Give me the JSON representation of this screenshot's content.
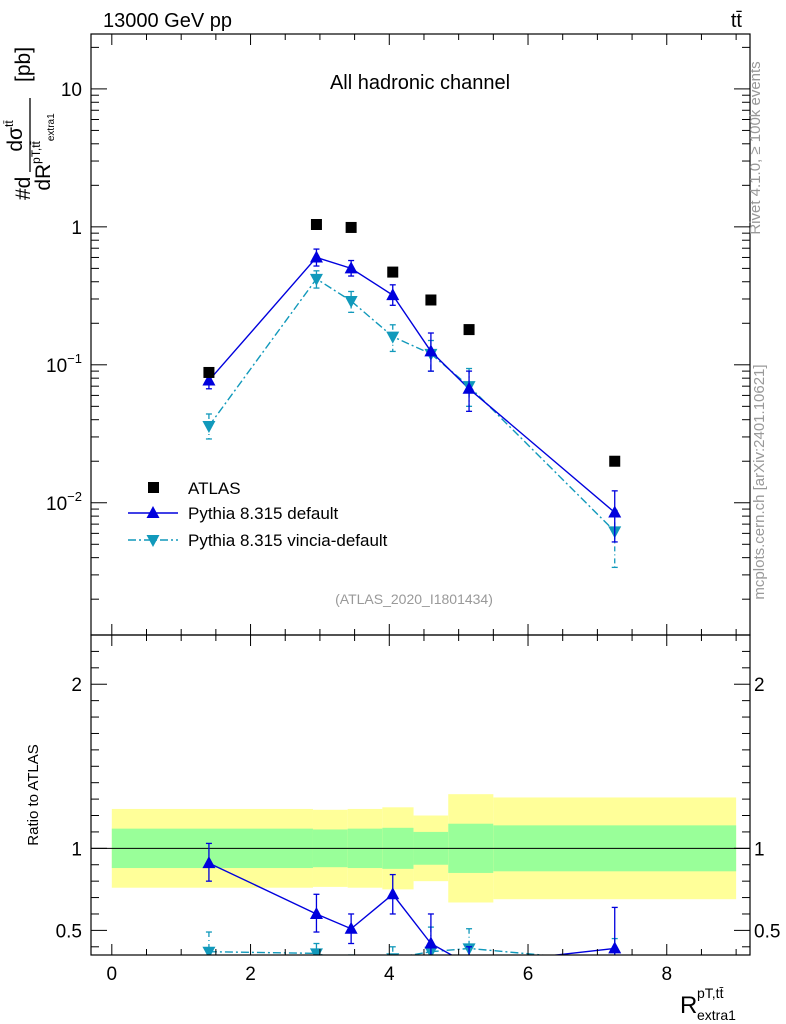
{
  "header": {
    "beam": "13000 GeV pp",
    "process": "tt̄"
  },
  "side": {
    "rivet": "Rivet 4.1.0, ≥ 100k events",
    "mcplots": "mcplots.cern.ch [arXiv:2401.10621]"
  },
  "labels": {
    "channel": "All hadronic channel",
    "analysis": "(ATLAS_2020_I1801434)",
    "ylabel_ratio": "Ratio to ATLAS"
  },
  "colors": {
    "data": "#000000",
    "default": "#0000dd",
    "vincia": "#1199bb",
    "band_inner": "#99ff99",
    "band_outer": "#ffff99"
  },
  "chart_data": {
    "type": "scatter",
    "xlabel": "R^{pT,tt̄}_{extra1}",
    "ylabel": "#d dσ^{tt̄} / dR^{pT,tt̄}_{extra1} [pb]",
    "x_range": [
      -0.3,
      9.2
    ],
    "x_ticks": [
      "0",
      "2",
      "4",
      "6",
      "8"
    ],
    "main": {
      "yscale": "log",
      "y_range": [
        0.0011,
        25
      ],
      "y_tick_labels": [
        "10^{-2}",
        "10^{-1}",
        "1",
        "10"
      ],
      "legend": {
        "position": "lower-left",
        "entries": [
          "ATLAS",
          "Pythia 8.315 default",
          "Pythia 8.315 vincia-default"
        ]
      }
    },
    "ratio": {
      "y_range": [
        0.35,
        2.3
      ],
      "y_tick_labels": [
        "0.5",
        "1",
        "2"
      ]
    },
    "series": [
      {
        "name": "ATLAS",
        "x": [
          1.4,
          2.95,
          3.45,
          4.05,
          4.6,
          5.15,
          7.25
        ],
        "values": [
          0.088,
          1.04,
          0.99,
          0.47,
          0.295,
          0.18,
          0.02
        ],
        "ratio_band_bins": [
          [
            0,
            2.9
          ],
          [
            2.9,
            3.4
          ],
          [
            3.4,
            3.9
          ],
          [
            3.9,
            4.35
          ],
          [
            4.35,
            4.85
          ],
          [
            4.85,
            5.5
          ],
          [
            5.5,
            9.0
          ]
        ],
        "ratio_band_inner": [
          [
            0.88,
            1.12
          ],
          [
            0.885,
            1.115
          ],
          [
            0.88,
            1.12
          ],
          [
            0.875,
            1.125
          ],
          [
            0.9,
            1.1
          ],
          [
            0.85,
            1.15
          ],
          [
            0.86,
            1.14
          ]
        ],
        "ratio_band_outer": [
          [
            0.76,
            1.24
          ],
          [
            0.765,
            1.235
          ],
          [
            0.76,
            1.24
          ],
          [
            0.75,
            1.25
          ],
          [
            0.8,
            1.2
          ],
          [
            0.67,
            1.33
          ],
          [
            0.69,
            1.31
          ]
        ]
      },
      {
        "name": "Pythia 8.315 default",
        "x": [
          1.4,
          2.95,
          3.45,
          4.05,
          4.6,
          5.15,
          7.25
        ],
        "values": [
          0.077,
          0.6,
          0.5,
          0.32,
          0.125,
          0.067,
          0.0085
        ],
        "err_low": [
          0.067,
          0.52,
          0.44,
          0.27,
          0.09,
          0.046,
          0.0052
        ],
        "err_high": [
          0.09,
          0.69,
          0.57,
          0.38,
          0.17,
          0.09,
          0.0122
        ],
        "ratio": [
          0.91,
          0.6,
          0.51,
          0.72,
          0.42,
          0.29,
          0.39
        ],
        "ratio_err_low": [
          0.8,
          0.49,
          0.42,
          0.6,
          0.3,
          0.2,
          0.2
        ],
        "ratio_err_high": [
          1.03,
          0.72,
          0.6,
          0.84,
          0.6,
          0.4,
          0.64
        ]
      },
      {
        "name": "Pythia 8.315 vincia-default",
        "x": [
          1.4,
          2.95,
          3.45,
          4.05,
          4.6,
          5.15,
          7.25
        ],
        "values": [
          0.036,
          0.42,
          0.29,
          0.16,
          0.12,
          0.07,
          0.0062
        ],
        "err_low": [
          0.029,
          0.36,
          0.24,
          0.125,
          0.09,
          0.05,
          0.0034
        ],
        "err_high": [
          0.044,
          0.48,
          0.34,
          0.195,
          0.15,
          0.094,
          0.0088
        ],
        "ratio": [
          0.37,
          0.36,
          0.3,
          0.33,
          0.37,
          0.39,
          0.31
        ],
        "ratio_err_low": [
          0.26,
          0.3,
          0.25,
          0.27,
          0.28,
          0.27,
          0.17
        ],
        "ratio_err_high": [
          0.49,
          0.42,
          0.35,
          0.4,
          0.52,
          0.51,
          0.45
        ]
      }
    ]
  }
}
